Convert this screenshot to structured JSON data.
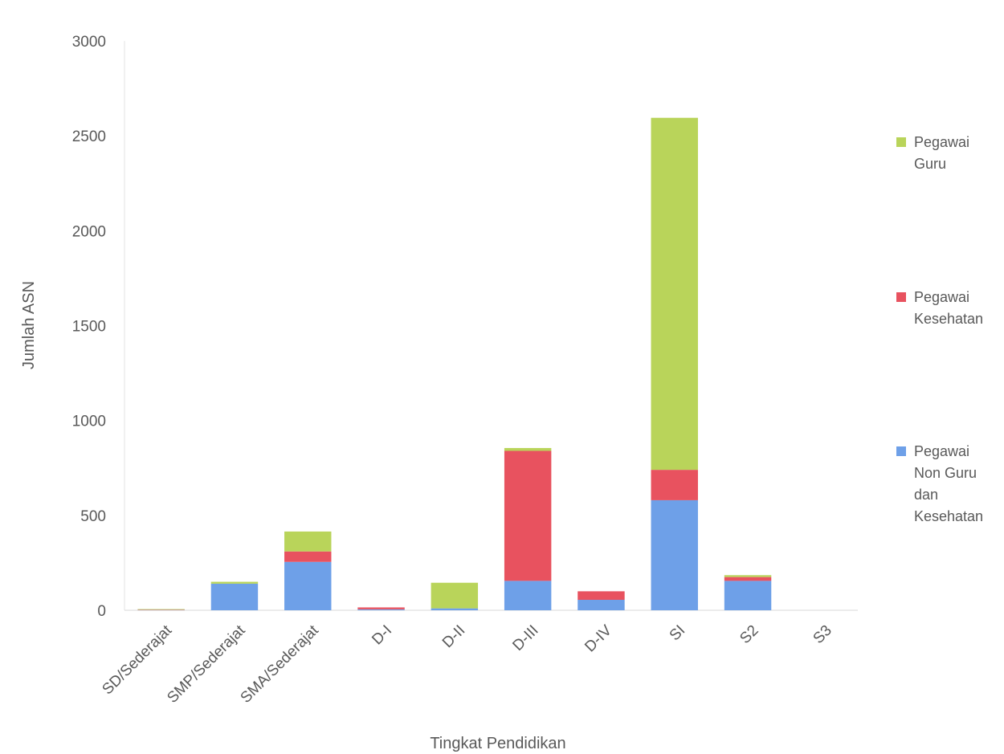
{
  "chart_data": {
    "type": "bar",
    "stacked": true,
    "title": "",
    "xlabel": "Tingkat Pendidikan",
    "ylabel": "Jumlah ASN",
    "ylim": [
      0,
      3000
    ],
    "yticks": [
      0,
      500,
      1000,
      1500,
      2000,
      2500,
      3000
    ],
    "grid": false,
    "legend_position": "right",
    "categories": [
      "SD/Sederajat",
      "SMP/Sederajat",
      "SMA/Sederajat",
      "D-I",
      "D-II",
      "D-III",
      "D-IV",
      "SI",
      "S2",
      "S3"
    ],
    "series": [
      {
        "name": "Pegawai Non Guru dan Kesehatan",
        "legend_lines": [
          "Pegawai",
          "Non Guru",
          "dan",
          "Kesehatan"
        ],
        "color": "#6ea0e8",
        "values": [
          2,
          140,
          255,
          5,
          10,
          155,
          55,
          580,
          155,
          0
        ]
      },
      {
        "name": "Pegawai Kesehatan",
        "legend_lines": [
          "Pegawai",
          "Kesehatan"
        ],
        "color": "#e8525f",
        "values": [
          1,
          0,
          55,
          10,
          0,
          685,
          45,
          160,
          20,
          0
        ]
      },
      {
        "name": "Pegawai Guru",
        "legend_lines": [
          "Pegawai",
          "Guru"
        ],
        "color": "#b9d45a",
        "values": [
          3,
          10,
          105,
          0,
          135,
          15,
          0,
          1855,
          10,
          0
        ]
      }
    ]
  }
}
